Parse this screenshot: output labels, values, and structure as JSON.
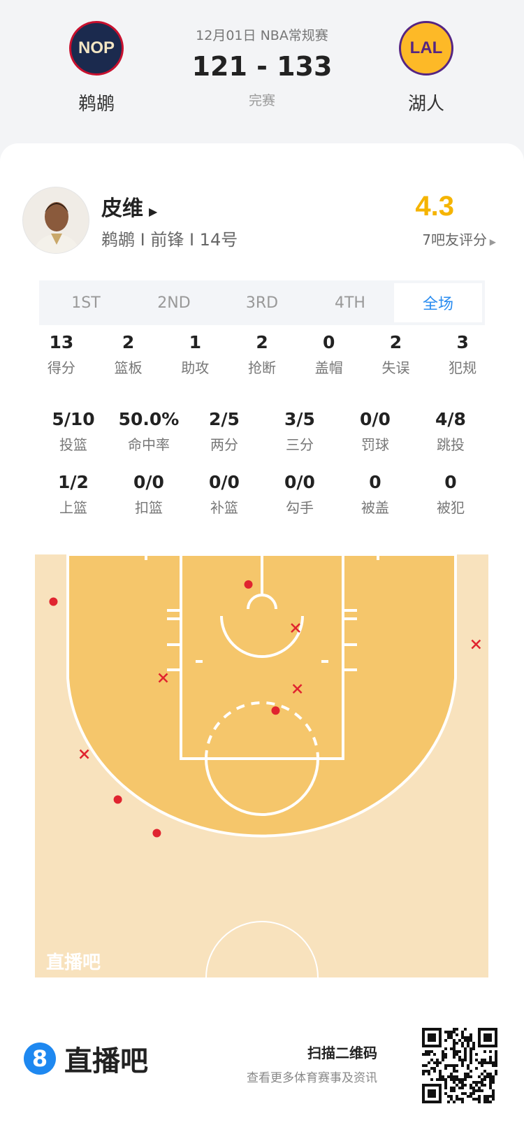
{
  "header": {
    "date_league": "12月01日 NBA常规赛",
    "score": "121 - 133",
    "status": "完赛",
    "home": {
      "abbr": "NOP",
      "name": "鹈鹕"
    },
    "away": {
      "abbr": "LAL",
      "name": "湖人"
    }
  },
  "player": {
    "name": "皮维",
    "info": "鹈鹕 I 前锋 I 14号",
    "rating": "4.3",
    "rating_label": "7吧友评分"
  },
  "tabs": [
    {
      "label": "1ST"
    },
    {
      "label": "2ND"
    },
    {
      "label": "3RD"
    },
    {
      "label": "4TH"
    },
    {
      "label": "全场",
      "active": true
    }
  ],
  "stats": {
    "row1": [
      {
        "v": "13",
        "l": "得分"
      },
      {
        "v": "2",
        "l": "篮板"
      },
      {
        "v": "1",
        "l": "助攻"
      },
      {
        "v": "2",
        "l": "抢断"
      },
      {
        "v": "0",
        "l": "盖帽"
      },
      {
        "v": "2",
        "l": "失误"
      },
      {
        "v": "3",
        "l": "犯规"
      }
    ],
    "row2": [
      {
        "v": "5/10",
        "l": "投篮"
      },
      {
        "v": "50.0%",
        "l": "命中率"
      },
      {
        "v": "2/5",
        "l": "两分"
      },
      {
        "v": "3/5",
        "l": "三分"
      },
      {
        "v": "0/0",
        "l": "罚球"
      },
      {
        "v": "4/8",
        "l": "跳投"
      }
    ],
    "row3": [
      {
        "v": "1/2",
        "l": "上篮"
      },
      {
        "v": "0/0",
        "l": "扣篮"
      },
      {
        "v": "0/0",
        "l": "补篮"
      },
      {
        "v": "0/0",
        "l": "勾手"
      },
      {
        "v": "0",
        "l": "被盖"
      },
      {
        "v": "0",
        "l": "被犯"
      }
    ]
  },
  "shot_chart": {
    "watermark": "直播吧",
    "units": "feet from basket (x) / from baseline (y)",
    "made": [
      [
        -23.0,
        5.2
      ],
      [
        -1.5,
        3.3
      ],
      [
        1.5,
        17.2
      ],
      [
        -15.9,
        27.0
      ],
      [
        -11.6,
        30.7
      ]
    ],
    "missed": [
      [
        3.7,
        8.1
      ],
      [
        -10.9,
        13.6
      ],
      [
        3.9,
        14.8
      ],
      [
        -19.6,
        22.0
      ],
      [
        23.6,
        9.9
      ]
    ],
    "colors": {
      "shot": "#e0242f",
      "paint": "#f5c66b",
      "floor": "#f8e2bd"
    }
  },
  "footer": {
    "logo_digit": "8",
    "brand": "直播吧",
    "scan_title": "扫描二维码",
    "scan_sub": "查看更多体育赛事及资讯"
  }
}
